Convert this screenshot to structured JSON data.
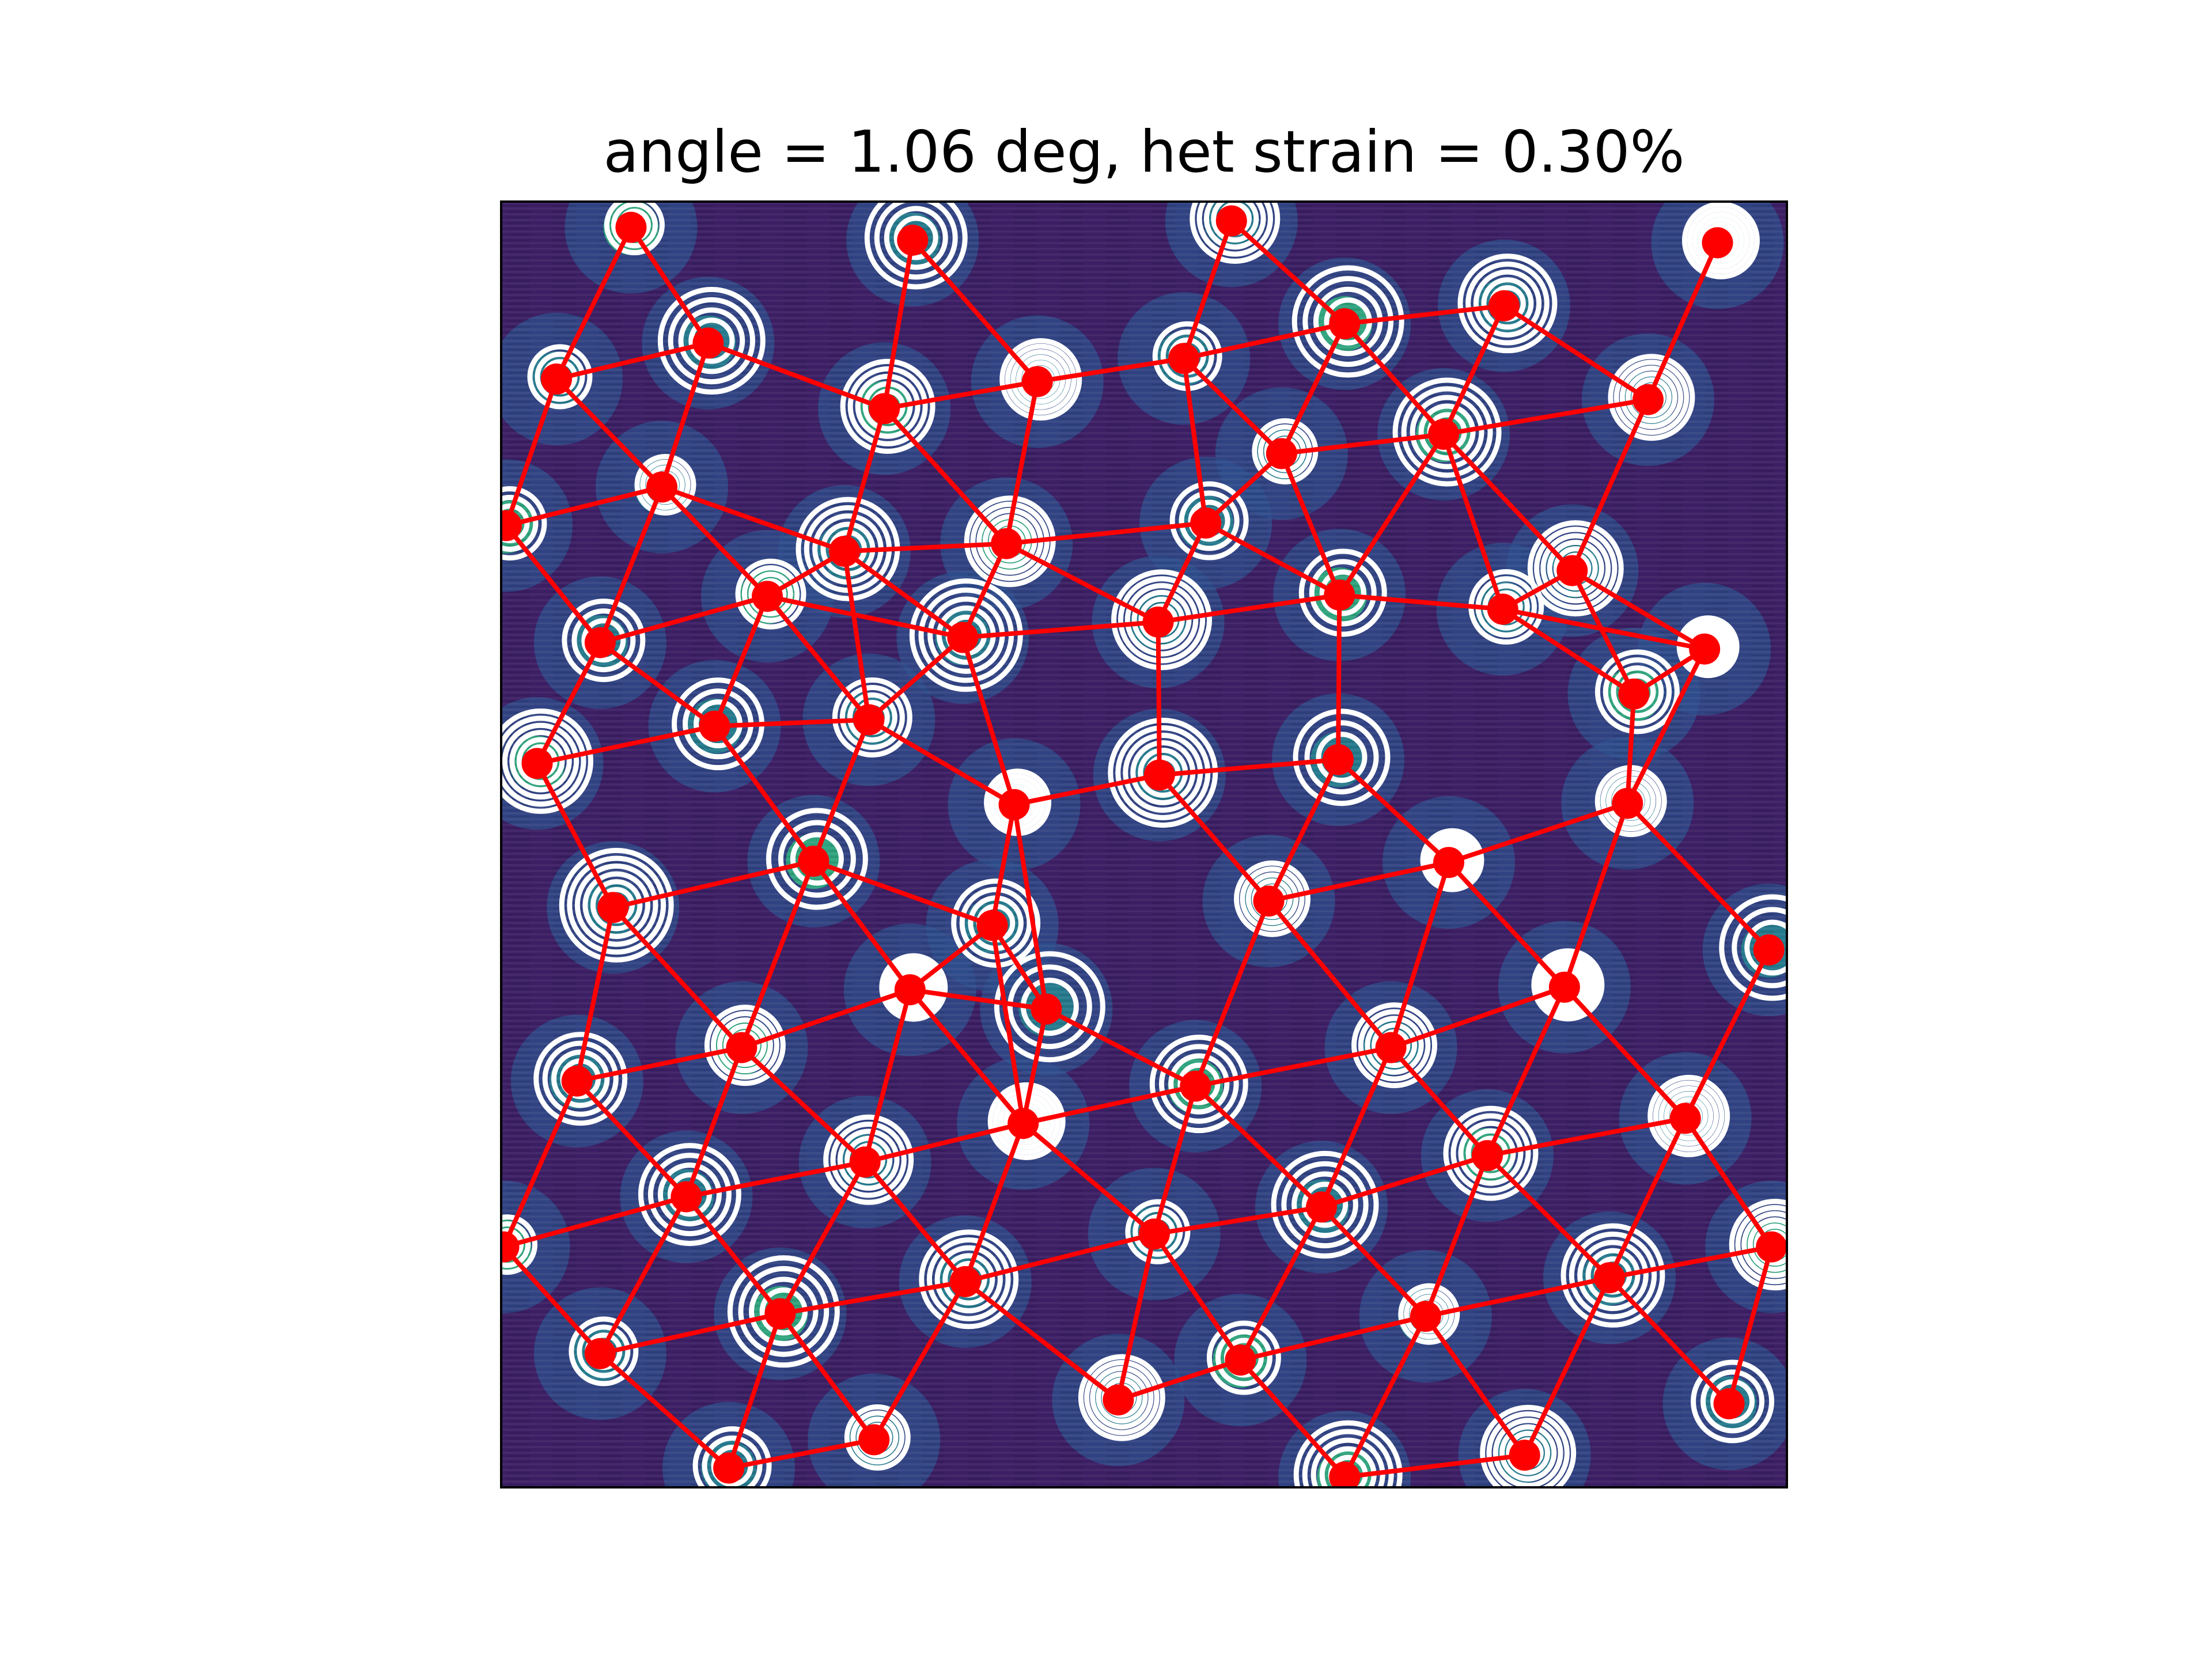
{
  "chart_data": {
    "type": "scatter",
    "title": "angle = 1.06 deg, het strain = 0.30%",
    "xlabel": "",
    "ylabel": "",
    "grid": false,
    "xlim": [
      0,
      1
    ],
    "ylim": [
      0,
      1
    ],
    "background": "scanning-probe topography image (viridis colormap)",
    "marker_color": "#ff0000",
    "line_color": "#ff0000",
    "contour_color": "#ffffff",
    "image_colors": [
      "#3b1e63",
      "#2e4f8c",
      "#23828e",
      "#2fb47c"
    ],
    "series": [
      {
        "values": [
          [
            0.101,
            0.98
          ],
          [
            0.32,
            0.97
          ],
          [
            0.568,
            0.985
          ],
          [
            0.946,
            0.968
          ],
          [
            0.043,
            0.862
          ],
          [
            0.161,
            0.89
          ],
          [
            0.298,
            0.839
          ],
          [
            0.417,
            0.86
          ],
          [
            0.531,
            0.878
          ],
          [
            0.656,
            0.905
          ],
          [
            0.78,
            0.919
          ],
          [
            0.892,
            0.846
          ],
          [
            0.004,
            0.748
          ],
          [
            0.125,
            0.778
          ],
          [
            0.267,
            0.728
          ],
          [
            0.393,
            0.734
          ],
          [
            0.548,
            0.75
          ],
          [
            0.607,
            0.804
          ],
          [
            0.733,
            0.819
          ],
          [
            0.833,
            0.713
          ],
          [
            0.077,
            0.657
          ],
          [
            0.207,
            0.693
          ],
          [
            0.359,
            0.661
          ],
          [
            0.511,
            0.673
          ],
          [
            0.652,
            0.694
          ],
          [
            0.779,
            0.683
          ],
          [
            0.936,
            0.652
          ],
          [
            0.028,
            0.563
          ],
          [
            0.166,
            0.592
          ],
          [
            0.286,
            0.597
          ],
          [
            0.399,
            0.531
          ],
          [
            0.512,
            0.554
          ],
          [
            0.651,
            0.566
          ],
          [
            0.881,
            0.617
          ],
          [
            0.876,
            0.532
          ],
          [
            0.087,
            0.451
          ],
          [
            0.243,
            0.487
          ],
          [
            0.382,
            0.437
          ],
          [
            0.597,
            0.456
          ],
          [
            0.737,
            0.486
          ],
          [
            0.986,
            0.418
          ],
          [
            0.059,
            0.316
          ],
          [
            0.187,
            0.342
          ],
          [
            0.318,
            0.387
          ],
          [
            0.424,
            0.372
          ],
          [
            0.54,
            0.312
          ],
          [
            0.692,
            0.342
          ],
          [
            0.827,
            0.389
          ],
          [
            0.002,
            0.187
          ],
          [
            0.144,
            0.226
          ],
          [
            0.283,
            0.253
          ],
          [
            0.406,
            0.283
          ],
          [
            0.508,
            0.197
          ],
          [
            0.638,
            0.218
          ],
          [
            0.767,
            0.258
          ],
          [
            0.921,
            0.287
          ],
          [
            0.077,
            0.104
          ],
          [
            0.217,
            0.135
          ],
          [
            0.361,
            0.16
          ],
          [
            0.48,
            0.068
          ],
          [
            0.575,
            0.099
          ],
          [
            0.719,
            0.133
          ],
          [
            0.862,
            0.163
          ],
          [
            0.988,
            0.187
          ],
          [
            0.177,
            0.015
          ],
          [
            0.29,
            0.037
          ],
          [
            0.656,
            0.008
          ],
          [
            0.796,
            0.025
          ],
          [
            0.955,
            0.065
          ]
        ]
      }
    ]
  }
}
